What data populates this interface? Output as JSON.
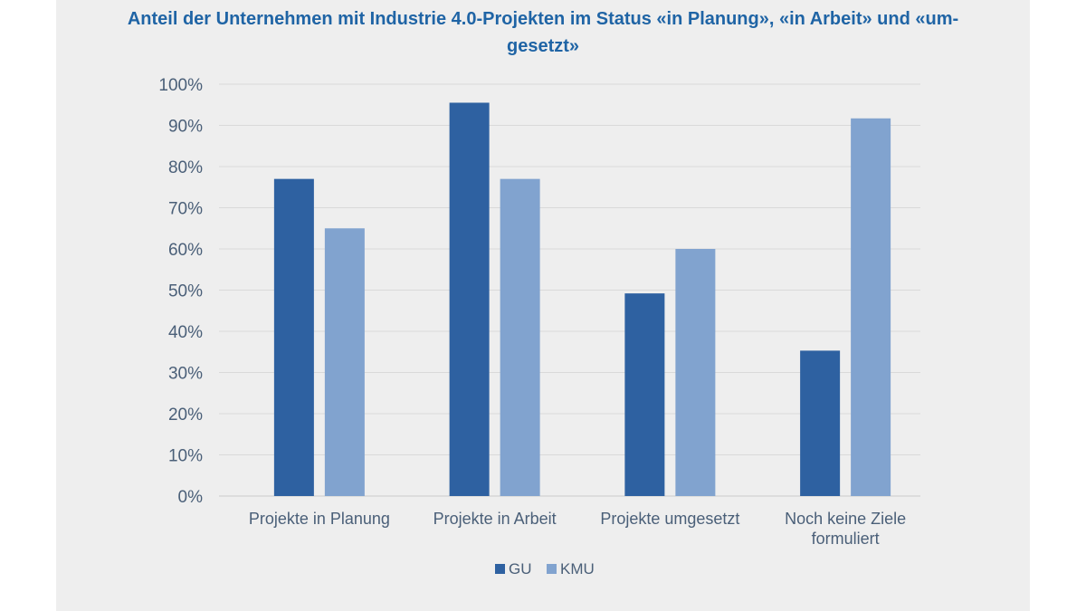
{
  "chart_data": {
    "type": "bar",
    "title_line1": "Anteil der Unternehmen mit Industrie 4.0-Projekten im Status «in Planung», «in Arbeit» und «um-",
    "title_line2": "gesetzt»",
    "categories": [
      [
        "Projekte in Planung"
      ],
      [
        "Projekte in Arbeit"
      ],
      [
        "Projekte umgesetzt"
      ],
      [
        "Noch keine Ziele",
        "formuliert"
      ]
    ],
    "series": [
      {
        "name": "GU",
        "color": "#2e61a1",
        "values": [
          77,
          95.5,
          49.2,
          35.3
        ]
      },
      {
        "name": "KMU",
        "color": "#81a3cf",
        "values": [
          65,
          77,
          60,
          91.7
        ]
      }
    ],
    "ylim": [
      0,
      100
    ],
    "yticks": [
      0,
      10,
      20,
      30,
      40,
      50,
      60,
      70,
      80,
      90,
      100
    ],
    "ytick_suffix": "%",
    "grid": true,
    "legend_position": "bottom-center"
  }
}
